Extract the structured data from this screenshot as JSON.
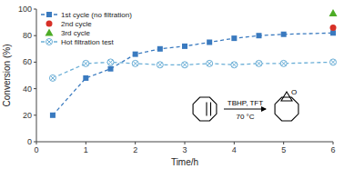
{
  "chart_data": {
    "type": "line",
    "xlabel": "Time/h",
    "ylabel": "Conversion (%)",
    "series": [
      {
        "name": "1st cycle (no filtration)",
        "color": "#3a7abf",
        "marker": "square",
        "line_style": "dashed",
        "x": [
          0.33,
          1.0,
          1.5,
          2.0,
          2.5,
          3.0,
          3.5,
          4.0,
          4.5,
          5.0,
          6.0
        ],
        "values": [
          20,
          48,
          55,
          66,
          70,
          72,
          75,
          78,
          80,
          81,
          82
        ]
      },
      {
        "name": "2nd cycle",
        "color": "#d73027",
        "marker": "circle",
        "line_style": "none",
        "x": [
          6.0
        ],
        "values": [
          86
        ]
      },
      {
        "name": "3rd cycle",
        "color": "#4dac26",
        "marker": "triangle",
        "line_style": "none",
        "x": [
          6.0
        ],
        "values": [
          97
        ]
      },
      {
        "name": "Hot filtration test",
        "color": "#6aaed6",
        "marker": "circle-x",
        "line_style": "dashed",
        "x": [
          0.33,
          1.0,
          1.5,
          2.0,
          2.5,
          3.0,
          3.5,
          4.0,
          4.5,
          5.0,
          6.0
        ],
        "values": [
          48,
          59,
          60,
          59,
          58,
          58,
          59,
          58,
          59,
          59,
          60
        ]
      }
    ],
    "xlim": [
      0,
      6
    ],
    "ylim": [
      0,
      100
    ],
    "xticks": [
      0,
      1,
      2,
      3,
      4,
      5,
      6
    ],
    "yticks": [
      0,
      20,
      40,
      60,
      80,
      100
    ],
    "grid": false,
    "legend": "upper left",
    "annotations": [
      "TBHP, TFT",
      "70 °C",
      "O"
    ]
  }
}
